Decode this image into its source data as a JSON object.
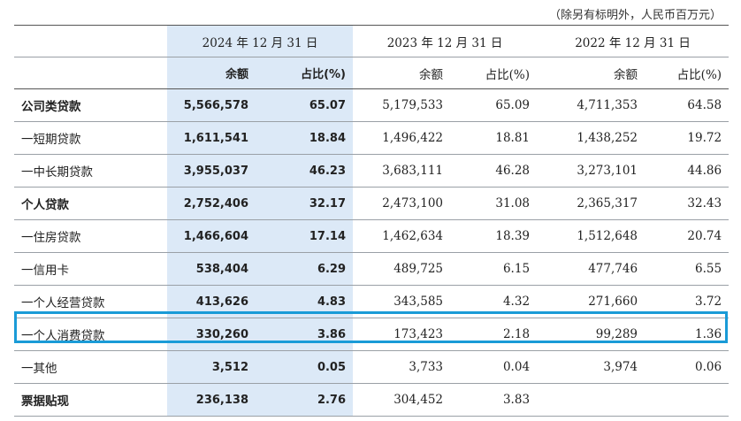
{
  "note": "（除另有标明外，人民币百万元）",
  "years": [
    "2024 年 12 月 31 日",
    "2023 年 12 月 31 日",
    "2022 年 12 月 31 日"
  ],
  "sub_headers": {
    "amount": "余额",
    "ratio": "占比(%)"
  },
  "rows": [
    {
      "label": "公司类贷款",
      "bold": true,
      "v": [
        "5,566,578",
        "65.07",
        "5,179,533",
        "65.09",
        "4,711,353",
        "64.58"
      ]
    },
    {
      "label": "一短期贷款",
      "bold": false,
      "v": [
        "1,611,541",
        "18.84",
        "1,496,422",
        "18.81",
        "1,438,252",
        "19.72"
      ]
    },
    {
      "label": "一中长期贷款",
      "bold": false,
      "v": [
        "3,955,037",
        "46.23",
        "3,683,111",
        "46.28",
        "3,273,101",
        "44.86"
      ]
    },
    {
      "label": "个人贷款",
      "bold": true,
      "v": [
        "2,752,406",
        "32.17",
        "2,473,100",
        "31.08",
        "2,365,317",
        "32.43"
      ]
    },
    {
      "label": "一住房贷款",
      "bold": false,
      "v": [
        "1,466,604",
        "17.14",
        "1,462,634",
        "18.39",
        "1,512,648",
        "20.74"
      ]
    },
    {
      "label": "一信用卡",
      "bold": false,
      "v": [
        "538,404",
        "6.29",
        "489,725",
        "6.15",
        "477,746",
        "6.55"
      ]
    },
    {
      "label": "一个人经营贷款",
      "bold": false,
      "v": [
        "413,626",
        "4.83",
        "343,585",
        "4.32",
        "271,660",
        "3.72"
      ]
    },
    {
      "label": "一个人消费贷款",
      "bold": false,
      "v": [
        "330,260",
        "3.86",
        "173,423",
        "2.18",
        "99,289",
        "1.36"
      ]
    },
    {
      "label": "一其他",
      "bold": false,
      "v": [
        "3,512",
        "0.05",
        "3,733",
        "0.04",
        "3,974",
        "0.06"
      ]
    },
    {
      "label": "票据贴现",
      "bold": true,
      "v": [
        "236,138",
        "2.76",
        "304,452",
        "3.83",
        "",
        ""
      ]
    }
  ]
}
